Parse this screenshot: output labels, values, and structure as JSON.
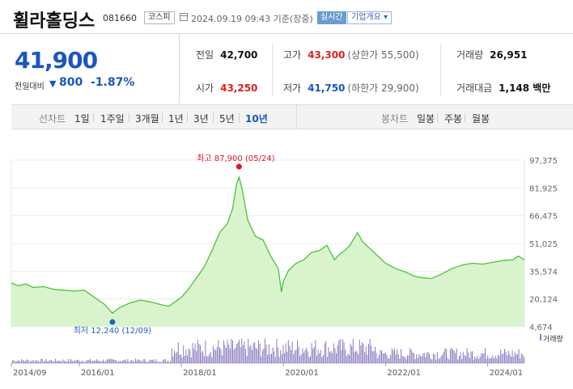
{
  "header": {
    "name": "휠라홀딩스",
    "code": "081660",
    "market": "코스피",
    "datetime": "2024.09.19 09:43 기준(장중)",
    "realtime": "실시간",
    "company_info": "기업개요 ▾"
  },
  "price": {
    "current": "41,900",
    "change_label": "전일대비",
    "change_icon": "▼",
    "change_value": "800",
    "change_rate": "-1.87%"
  },
  "stats": {
    "prev_close": {
      "label": "전일",
      "value": "42,700"
    },
    "high": {
      "label": "고가",
      "value": "43,300",
      "sub": "(상한가 55,500)"
    },
    "volume": {
      "label": "거래량",
      "value": "26,951"
    },
    "open": {
      "label": "시가",
      "value": "43,250"
    },
    "low": {
      "label": "저가",
      "value": "41,750",
      "sub": "(하한가 29,900)"
    },
    "trade_amount": {
      "label": "거래대금",
      "value": "1,148 백만"
    }
  },
  "toolbar": {
    "line_chart_label": "선차트",
    "periods": [
      "1일",
      "1주일",
      "3개월",
      "1년",
      "3년",
      "5년",
      "10년"
    ],
    "active_period": "10년",
    "candle_chart_label": "봉차트",
    "candles": [
      "일봉",
      "주봉",
      "월봉"
    ]
  },
  "colors": {
    "line": "#4cc23a",
    "fill": "#d9f4cc",
    "volume": "#8b7bc1",
    "high_marker": "#e0141e",
    "low_marker": "#1f63c6"
  },
  "chart_data": {
    "type": "area",
    "y_ticks": [
      "97,375",
      "81,925",
      "66,475",
      "51,025",
      "35,574",
      "20,124",
      "4,674"
    ],
    "ylim": [
      4674,
      97375
    ],
    "x_ticks": [
      "2014/09",
      "2016/01",
      "2018/01",
      "2020/01",
      "2022/01",
      "2024/01"
    ],
    "x_tick_dates": [
      2014.67,
      2016.0,
      2018.0,
      2020.0,
      2022.0,
      2024.0
    ],
    "xlim": [
      2014.67,
      2024.72
    ],
    "high_annotation": "최고 87,900 (05/24)",
    "high_point": {
      "x": 2019.13,
      "y": 87900
    },
    "low_annotation": "최저 12,240 (12/09)",
    "low_point": {
      "x": 2016.65,
      "y": 12240
    },
    "volume_label": "거래량",
    "series": [
      {
        "x": [
          2014.67,
          2014.8,
          2014.95,
          2015.1,
          2015.3,
          2015.5,
          2015.7,
          2015.9,
          2016.1,
          2016.3,
          2016.5,
          2016.65,
          2016.8,
          2017.0,
          2017.2,
          2017.4,
          2017.6,
          2017.75,
          2017.9,
          2018.0,
          2018.15,
          2018.3,
          2018.45,
          2018.6,
          2018.75,
          2018.9,
          2019.0,
          2019.08,
          2019.13,
          2019.2,
          2019.3,
          2019.45,
          2019.6,
          2019.75,
          2019.9,
          2019.96,
          2020.0,
          2020.1,
          2020.25,
          2020.4,
          2020.55,
          2020.7,
          2020.85,
          2021.0,
          2021.1,
          2021.2,
          2021.3,
          2021.45,
          2021.55,
          2021.7,
          2021.85,
          2022.0,
          2022.2,
          2022.4,
          2022.55,
          2022.7,
          2022.9,
          2023.1,
          2023.3,
          2023.5,
          2023.7,
          2023.9,
          2024.1,
          2024.3,
          2024.5,
          2024.6,
          2024.72
        ],
        "y": [
          29000,
          27500,
          28500,
          26500,
          27000,
          25500,
          25000,
          24500,
          25000,
          21000,
          17000,
          12240,
          15500,
          18000,
          19500,
          18500,
          17000,
          16000,
          19000,
          21000,
          26000,
          32000,
          38000,
          47000,
          57000,
          62000,
          70000,
          84000,
          87900,
          80000,
          64000,
          55000,
          53000,
          44000,
          37000,
          24000,
          30000,
          36000,
          40000,
          42000,
          46000,
          47000,
          50000,
          42000,
          45000,
          47000,
          50000,
          57000,
          52000,
          48000,
          44000,
          40000,
          37000,
          35000,
          33000,
          32000,
          31500,
          34000,
          37000,
          39000,
          40000,
          39500,
          40500,
          41500,
          42000,
          44000,
          41900
        ]
      }
    ]
  }
}
